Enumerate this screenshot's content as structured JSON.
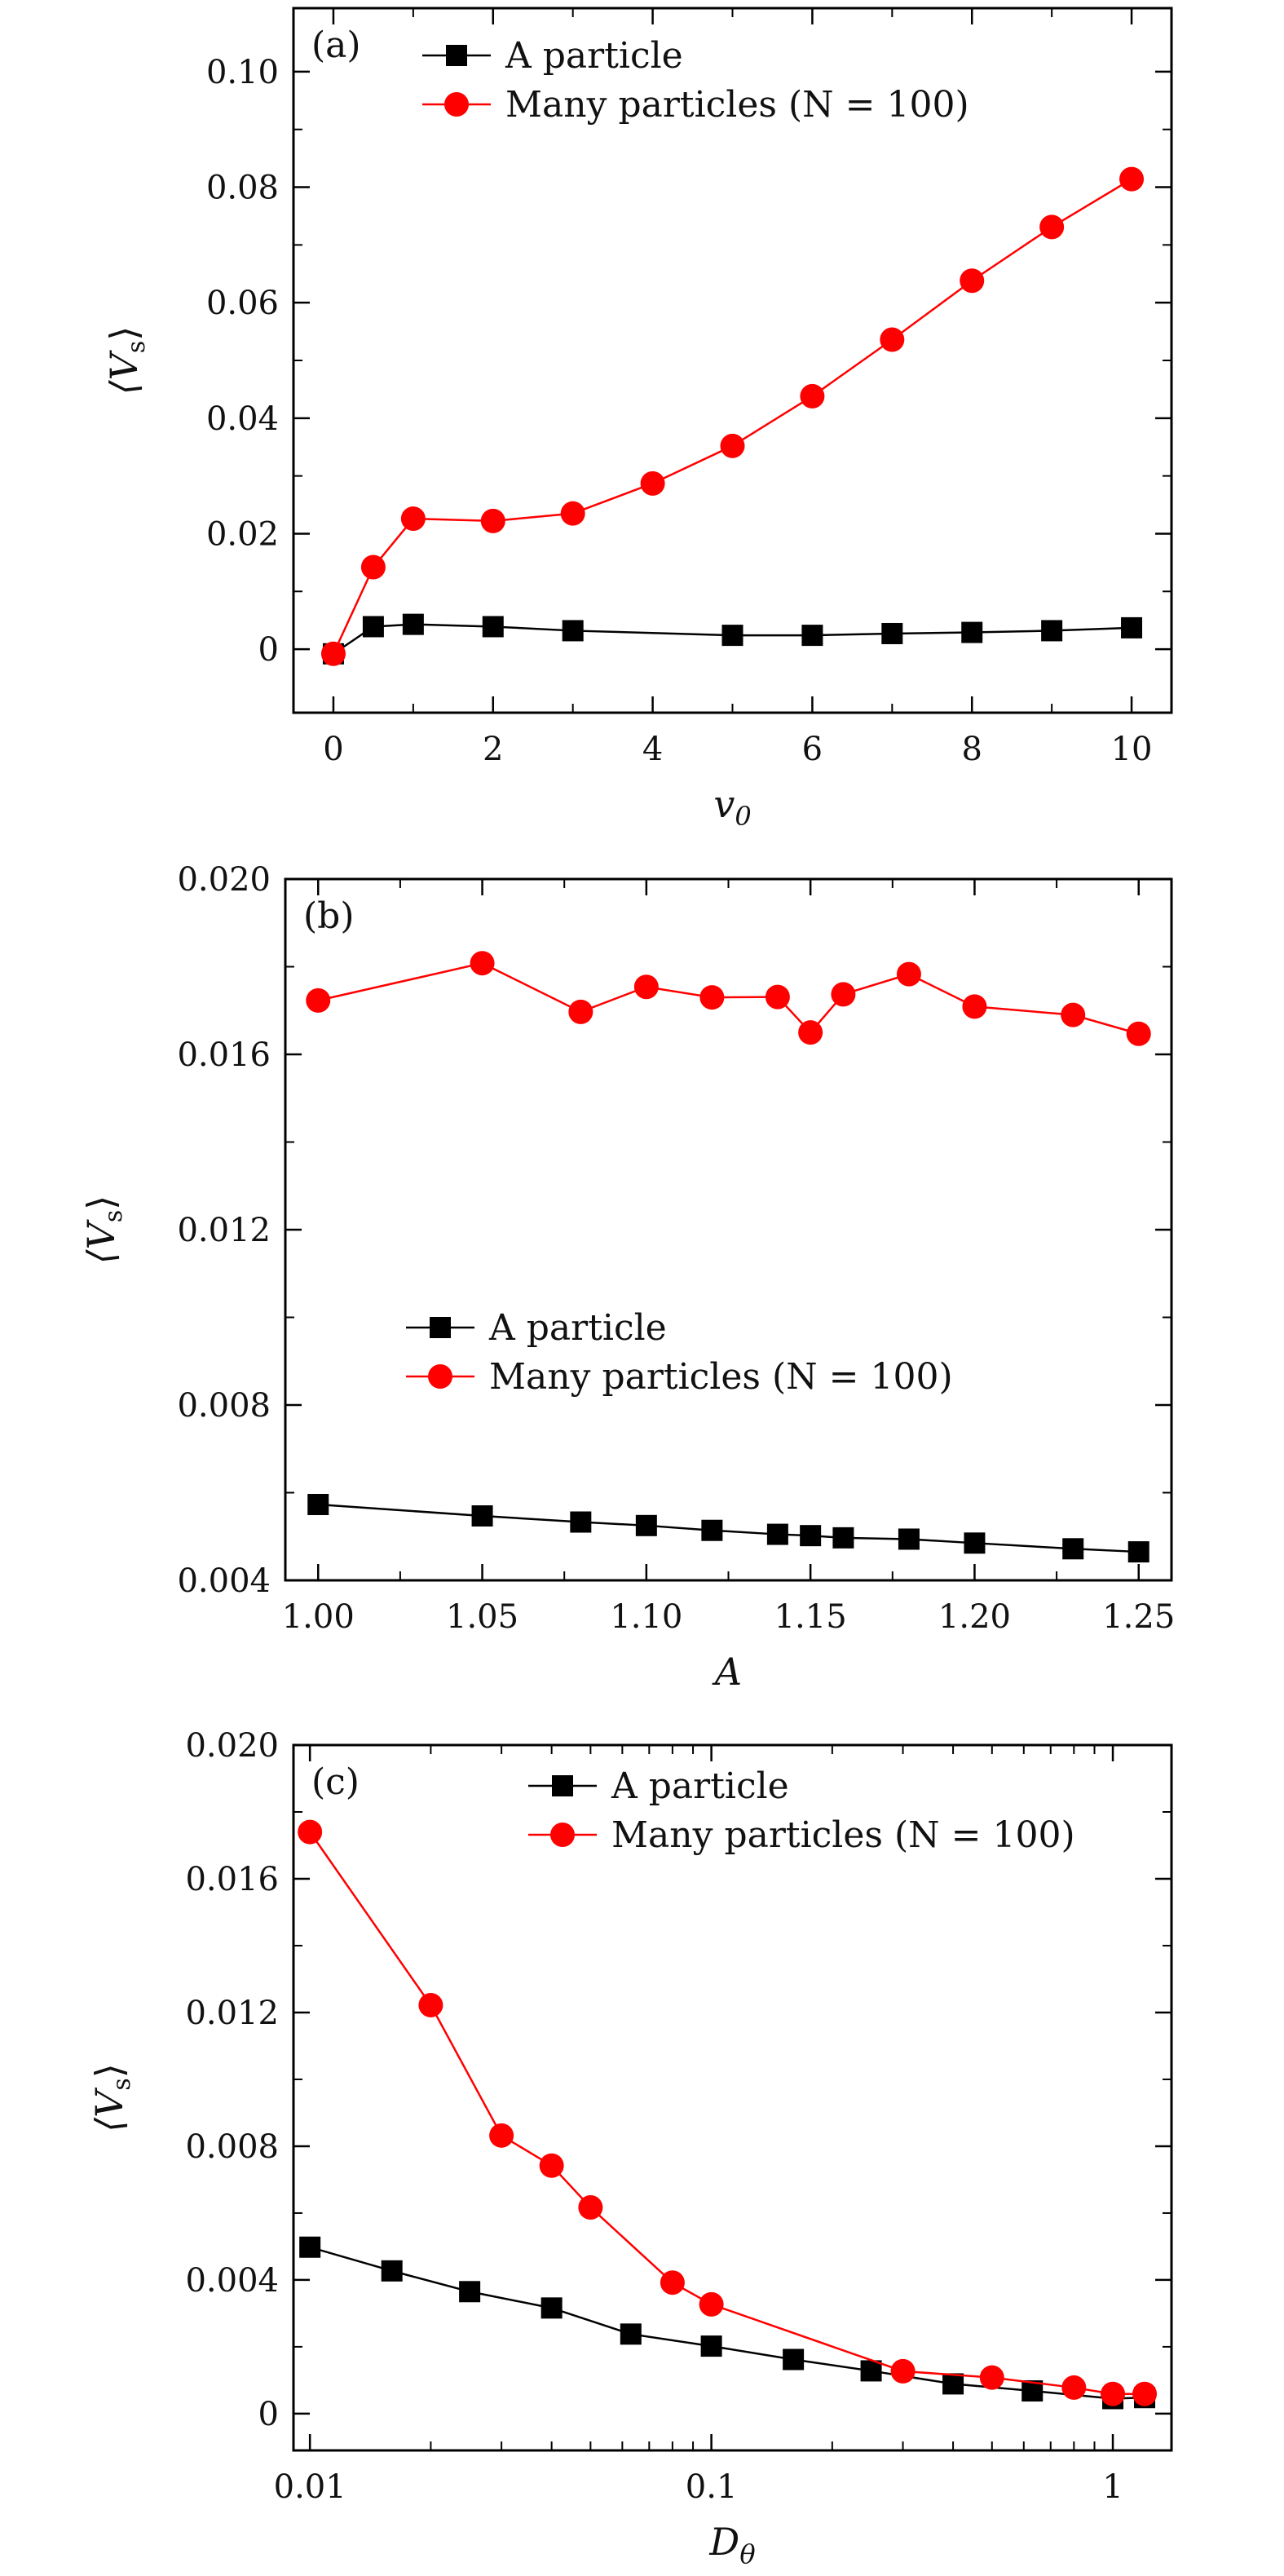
{
  "chart_data": [
    {
      "type": "line",
      "panel_label": "(a)",
      "xlabel": "v",
      "xlabel_sub": "0",
      "ylabel": "⟨V",
      "ylabel_sub": "s",
      "ylabel_close": "⟩",
      "xlim": [
        -0.5,
        10.5
      ],
      "ylim": [
        -0.011,
        0.111
      ],
      "xscale": "linear",
      "xticks": [
        0,
        2,
        4,
        6,
        8,
        10
      ],
      "xtick_labels": [
        "0",
        "2",
        "4",
        "6",
        "8",
        "10"
      ],
      "yticks": [
        0,
        0.02,
        0.04,
        0.06,
        0.08,
        0.1
      ],
      "ytick_labels": [
        "0",
        "0.02",
        "0.04",
        "0.06",
        "0.08",
        "0.10"
      ],
      "legend_position": "top-center",
      "series": [
        {
          "name": "A particle",
          "color": "#000000",
          "marker": "square",
          "x": [
            0,
            0.5,
            1,
            2,
            3,
            5,
            6,
            7,
            8,
            9,
            10
          ],
          "y": [
            -0.0008,
            0.0039,
            0.0043,
            0.0039,
            0.0032,
            0.0024,
            0.0024,
            0.0027,
            0.0029,
            0.0032,
            0.0037
          ]
        },
        {
          "name": "Many particles (N = 100)",
          "color": "#ff0000",
          "marker": "circle",
          "x": [
            0,
            0.5,
            1,
            2,
            3,
            4,
            5,
            6,
            7,
            8,
            9,
            10
          ],
          "y": [
            -0.0008,
            0.0142,
            0.0226,
            0.0222,
            0.0235,
            0.0287,
            0.0352,
            0.0438,
            0.0536,
            0.0638,
            0.0731,
            0.0814
          ]
        }
      ]
    },
    {
      "type": "line",
      "panel_label": "(b)",
      "xlabel": "A",
      "xlabel_sub": "",
      "ylabel": "⟨V",
      "ylabel_sub": "s",
      "ylabel_close": "⟩",
      "xlim": [
        0.99,
        1.26
      ],
      "ylim": [
        0.004,
        0.02
      ],
      "xscale": "linear",
      "xticks": [
        1.0,
        1.05,
        1.1,
        1.15,
        1.2,
        1.25
      ],
      "xtick_labels": [
        "1.00",
        "1.05",
        "1.10",
        "1.15",
        "1.20",
        "1.25"
      ],
      "yticks": [
        0.004,
        0.008,
        0.012,
        0.016,
        0.02
      ],
      "ytick_labels": [
        "0.004",
        "0.008",
        "0.012",
        "0.016",
        "0.020"
      ],
      "legend_position": "center",
      "series": [
        {
          "name": "A particle",
          "color": "#000000",
          "marker": "square",
          "x": [
            1.0,
            1.05,
            1.08,
            1.1,
            1.12,
            1.14,
            1.15,
            1.16,
            1.18,
            1.2,
            1.23,
            1.25
          ],
          "y": [
            0.00573,
            0.00547,
            0.00533,
            0.00525,
            0.00514,
            0.00505,
            0.00502,
            0.00497,
            0.00494,
            0.00485,
            0.00472,
            0.00465
          ]
        },
        {
          "name": "Many particles (N = 100)",
          "color": "#ff0000",
          "marker": "circle",
          "x": [
            1.0,
            1.05,
            1.08,
            1.1,
            1.12,
            1.14,
            1.15,
            1.16,
            1.18,
            1.2,
            1.23,
            1.25
          ],
          "y": [
            0.01723,
            0.01808,
            0.01697,
            0.01754,
            0.0173,
            0.01731,
            0.0165,
            0.01737,
            0.01783,
            0.01709,
            0.0169,
            0.01647
          ]
        }
      ]
    },
    {
      "type": "line",
      "panel_label": "(c)",
      "xlabel": "D",
      "xlabel_sub": "θ",
      "ylabel": "⟨V",
      "ylabel_sub": "s",
      "ylabel_close": "⟩",
      "xlim": [
        0.0091,
        1.4
      ],
      "ylim": [
        -0.0011,
        0.02
      ],
      "xscale": "log",
      "xticks": [
        0.01,
        0.1,
        1
      ],
      "xtick_labels": [
        "0.01",
        "0.1",
        "1"
      ],
      "yticks": [
        0,
        0.004,
        0.008,
        0.012,
        0.016,
        0.02
      ],
      "ytick_labels": [
        "0",
        "0.004",
        "0.008",
        "0.012",
        "0.016",
        "0.020"
      ],
      "legend_position": "top-center",
      "series": [
        {
          "name": "A particle",
          "color": "#000000",
          "marker": "square",
          "x": [
            0.01,
            0.016,
            0.025,
            0.04,
            0.063,
            0.1,
            0.16,
            0.25,
            0.4,
            0.63,
            1.0,
            1.2
          ],
          "y": [
            0.00498,
            0.00427,
            0.00365,
            0.00316,
            0.00238,
            0.00202,
            0.00162,
            0.00128,
            0.00089,
            0.00068,
            0.00045,
            0.00048
          ]
        },
        {
          "name": "Many particles (N = 100)",
          "color": "#ff0000",
          "marker": "circle",
          "x": [
            0.01,
            0.02,
            0.03,
            0.04,
            0.05,
            0.08,
            0.1,
            0.3,
            0.5,
            0.8,
            1.0,
            1.2
          ],
          "y": [
            0.0174,
            0.01222,
            0.00832,
            0.00742,
            0.00617,
            0.00392,
            0.00327,
            0.00127,
            0.00108,
            0.00078,
            0.00059,
            0.00059
          ]
        }
      ]
    }
  ]
}
